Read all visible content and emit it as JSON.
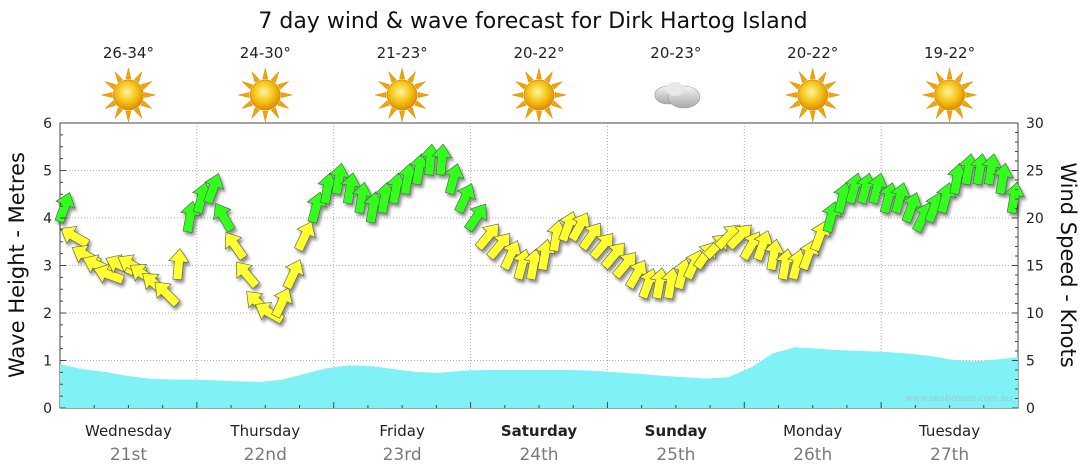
{
  "chart_data": {
    "type": "area",
    "title": "7 day wind & wave forecast for Dirk Hartog Island",
    "ylabel_left": "Wave Height - Metres",
    "ylabel_right": "Wind Speed - Knots",
    "yticks_left": [
      "0",
      "1",
      "2",
      "3",
      "4",
      "5",
      "6"
    ],
    "yticks_right": [
      "0",
      "5",
      "10",
      "15",
      "20",
      "25",
      "30"
    ],
    "ylim_left": [
      0,
      6
    ],
    "ylim_right": [
      0,
      30
    ],
    "grid": true,
    "days": [
      {
        "name": "Wednesday",
        "date": "21st",
        "temp": "26-34°",
        "icon": "sun-icon",
        "bold": false
      },
      {
        "name": "Thursday",
        "date": "22nd",
        "temp": "24-30°",
        "icon": "sun-icon",
        "bold": false
      },
      {
        "name": "Friday",
        "date": "23rd",
        "temp": "21-23°",
        "icon": "sun-icon",
        "bold": false
      },
      {
        "name": "Saturday",
        "date": "24th",
        "temp": "20-22°",
        "icon": "sun-icon",
        "bold": true
      },
      {
        "name": "Sunday",
        "date": "25th",
        "temp": "20-23°",
        "icon": "cloud-icon",
        "bold": true
      },
      {
        "name": "Monday",
        "date": "26th",
        "temp": "20-22°",
        "icon": "sun-icon",
        "bold": false
      },
      {
        "name": "Tuesday",
        "date": "27th",
        "temp": "19-22°",
        "icon": "sun-icon",
        "bold": false
      }
    ],
    "wave_height_m": [
      0.92,
      0.82,
      0.76,
      0.68,
      0.62,
      0.6,
      0.6,
      0.58,
      0.56,
      0.55,
      0.6,
      0.72,
      0.84,
      0.9,
      0.88,
      0.82,
      0.76,
      0.74,
      0.78,
      0.8,
      0.8,
      0.8,
      0.8,
      0.8,
      0.78,
      0.75,
      0.72,
      0.68,
      0.65,
      0.62,
      0.65,
      0.85,
      1.15,
      1.28,
      1.25,
      1.22,
      1.2,
      1.18,
      1.15,
      1.1,
      1.02,
      0.98,
      1.02,
      1.07
    ],
    "wind_knots": [
      21,
      18,
      16,
      15,
      14,
      15,
      15,
      14,
      13,
      12,
      15,
      20,
      22,
      23,
      20,
      17,
      14,
      11,
      10,
      11,
      14,
      18,
      21,
      23,
      24,
      23,
      22,
      21,
      22,
      23,
      24,
      25,
      26,
      26,
      24,
      22,
      20,
      18,
      17,
      16,
      15,
      15,
      16,
      18,
      19,
      19,
      18,
      17,
      16,
      15,
      14,
      13,
      13,
      13,
      14,
      15,
      16,
      17,
      18,
      18,
      17,
      17,
      16,
      15,
      15,
      16,
      18,
      20,
      22,
      23,
      23,
      23,
      22,
      22,
      21,
      20,
      21,
      22,
      24,
      25,
      25,
      25,
      24,
      22
    ],
    "wind_dir_deg": [
      20,
      300,
      300,
      295,
      290,
      295,
      300,
      305,
      310,
      315,
      5,
      10,
      15,
      20,
      330,
      325,
      320,
      315,
      300,
      25,
      25,
      25,
      15,
      10,
      10,
      10,
      10,
      10,
      10,
      10,
      10,
      10,
      5,
      5,
      15,
      25,
      35,
      40,
      40,
      25,
      15,
      10,
      10,
      10,
      20,
      30,
      35,
      40,
      40,
      40,
      30,
      20,
      10,
      10,
      15,
      25,
      35,
      45,
      45,
      45,
      30,
      20,
      10,
      10,
      15,
      20,
      20,
      15,
      15,
      15,
      15,
      15,
      15,
      15,
      20,
      25,
      20,
      15,
      10,
      10,
      10,
      10,
      10,
      10
    ],
    "wind_color_thresholds": {
      "yellow_below": 20,
      "red_below": 10
    },
    "colors": {
      "wave_fill": "#7ff1f7",
      "green": "#33ff1a",
      "yellow": "#ffff33",
      "red": "#ff1a1a",
      "grid": "#999999"
    },
    "credit": "www.seabreeze.com.au"
  }
}
